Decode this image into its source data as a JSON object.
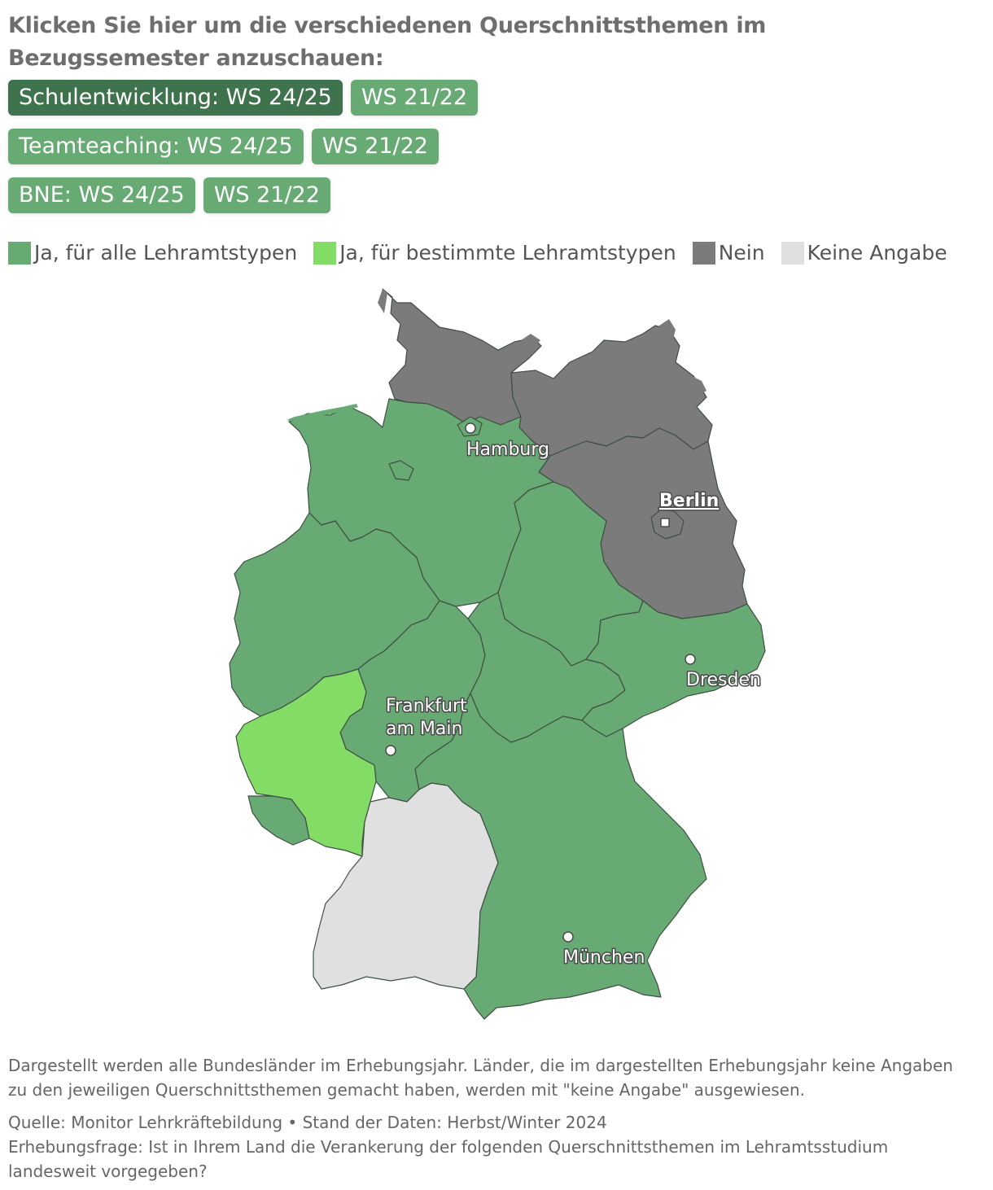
{
  "heading": "Klicken Sie hier um die verschiedenen Querschnittsthemen im Bezugssemester anzuschauen:",
  "buttons": [
    [
      {
        "label": "Schulentwicklung: WS 24/25",
        "active": true
      },
      {
        "label": "WS 21/22",
        "active": false
      }
    ],
    [
      {
        "label": "Teamteaching: WS 24/25",
        "active": false
      },
      {
        "label": "WS 21/22",
        "active": false
      }
    ],
    [
      {
        "label": "BNE: WS 24/25",
        "active": false
      },
      {
        "label": "WS 21/22",
        "active": false
      }
    ]
  ],
  "legend": [
    {
      "label": "Ja, für alle Lehramtstypen",
      "color": "#68aa74"
    },
    {
      "label": "Ja, für bestimmte Lehramtstypen",
      "color": "#83dc65"
    },
    {
      "label": "Nein",
      "color": "#7b7b7b"
    },
    {
      "label": "Keine Angabe",
      "color": "#e0e0e0"
    }
  ],
  "map": {
    "states": [
      {
        "name": "Schleswig-Holstein",
        "category": "Nein"
      },
      {
        "name": "Mecklenburg-Vorpommern",
        "category": "Nein"
      },
      {
        "name": "Brandenburg",
        "category": "Nein"
      },
      {
        "name": "Berlin",
        "category": "Nein"
      },
      {
        "name": "Hamburg",
        "category": "Ja, für alle Lehramtstypen"
      },
      {
        "name": "Bremen",
        "category": "Ja, für alle Lehramtstypen"
      },
      {
        "name": "Niedersachsen",
        "category": "Ja, für alle Lehramtstypen"
      },
      {
        "name": "Nordrhein-Westfalen",
        "category": "Ja, für alle Lehramtstypen"
      },
      {
        "name": "Hessen",
        "category": "Ja, für alle Lehramtstypen"
      },
      {
        "name": "Thüringen",
        "category": "Ja, für alle Lehramtstypen"
      },
      {
        "name": "Sachsen-Anhalt",
        "category": "Ja, für alle Lehramtstypen"
      },
      {
        "name": "Sachsen",
        "category": "Ja, für alle Lehramtstypen"
      },
      {
        "name": "Bayern",
        "category": "Ja, für alle Lehramtstypen"
      },
      {
        "name": "Saarland",
        "category": "Ja, für alle Lehramtstypen"
      },
      {
        "name": "Rheinland-Pfalz",
        "category": "Ja, für bestimmte Lehramtstypen"
      },
      {
        "name": "Baden-Württemberg",
        "category": "Keine Angabe"
      }
    ],
    "cities": [
      {
        "name": "Hamburg",
        "capital": false
      },
      {
        "name": "Berlin",
        "capital": true
      },
      {
        "name": "Dresden",
        "capital": false
      },
      {
        "name": "Frankfurt",
        "capital": false
      },
      {
        "name": "am Main",
        "capital": false
      },
      {
        "name": "München",
        "capital": false
      }
    ]
  },
  "notes": {
    "description": "Dargestellt werden alle Bundesländer im Erhebungsjahr. Länder, die im dargestellten Erhebungsjahr keine Angaben zu den jeweiligen Querschnittsthemen gemacht haben, werden mit \"keine Angabe\" ausgewiesen.",
    "source": "Quelle: Monitor Lehrkräftebildung • Stand der Daten: Herbst/Winter 2024",
    "question": "Erhebungsfrage: Ist in Ihrem Land die Verankerung der folgenden Querschnittsthemen im Lehramtsstudium landesweit vorgegeben?"
  }
}
